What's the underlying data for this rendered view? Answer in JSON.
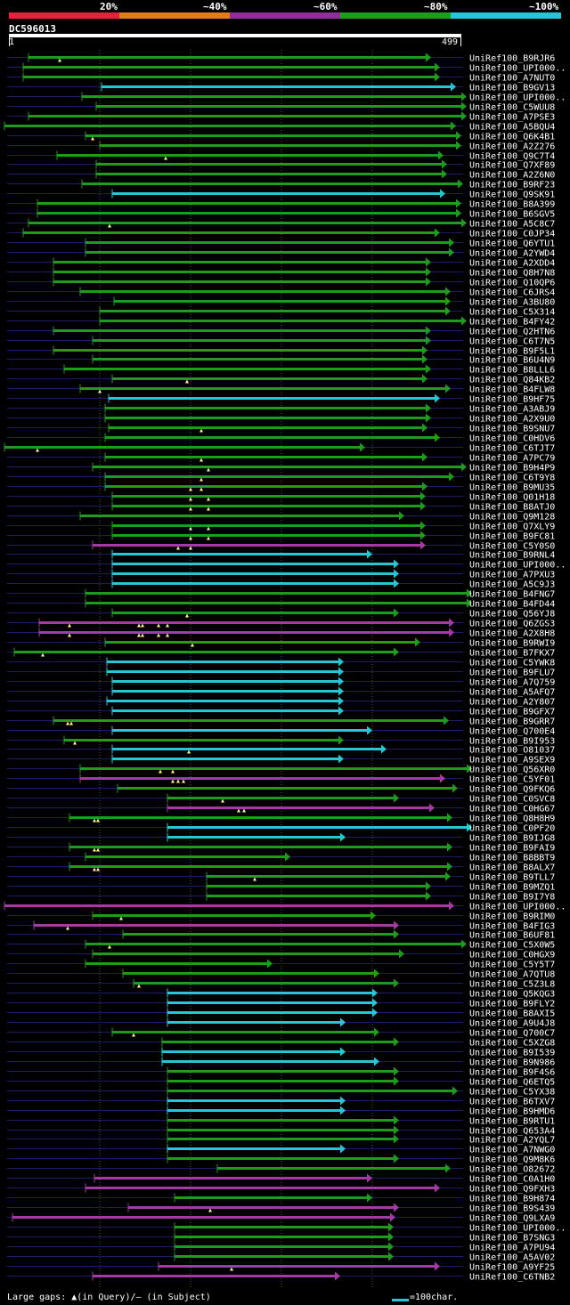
{
  "legend": {
    "labels": [
      "20%",
      "~40%",
      "~60%",
      "~80%",
      "~100%"
    ],
    "colors": [
      "#e8203c",
      "#e37b1e",
      "#8f2f99",
      "#1e9c1e",
      "#25c6d6"
    ]
  },
  "query": {
    "name": "DC596013",
    "start": "1",
    "end": "499",
    "length": 499
  },
  "footer": {
    "gaps_text": "Large gaps: ▲(in Query)/– (in Subject)",
    "scale_text": "=100char."
  },
  "color_map": {
    "g": "#1e9c1e",
    "c": "#25c6d6",
    "p": "#a43aa4"
  },
  "hits": [
    [
      "UniRef100_B9RJR6",
      "g",
      32,
      484,
      [
        67
      ]
    ],
    [
      "UniRef100_UPI000..",
      "g",
      26,
      494,
      []
    ],
    [
      "UniRef100_A7NUT0",
      "g",
      26,
      494,
      []
    ],
    [
      "UniRef100_B9GV13",
      "c",
      114,
      512,
      []
    ],
    [
      "UniRef100_UPI000..",
      "g",
      92,
      524,
      []
    ],
    [
      "UniRef100_C5WUU8",
      "g",
      108,
      524,
      []
    ],
    [
      "UniRef100_A7PSE3",
      "g",
      32,
      524,
      []
    ],
    [
      "UniRef100_A5BQU4",
      "g",
      5,
      512,
      []
    ],
    [
      "UniRef100_Q6K4B1",
      "g",
      96,
      518,
      [
        104
      ]
    ],
    [
      "UniRef100_A2Z276",
      "g",
      112,
      518,
      []
    ],
    [
      "UniRef100_Q9C7T4",
      "g",
      64,
      498,
      [
        186
      ]
    ],
    [
      "UniRef100_Q7XF89",
      "g",
      108,
      502,
      []
    ],
    [
      "UniRef100_A2Z6N0",
      "g",
      108,
      502,
      []
    ],
    [
      "UniRef100_B9RF23",
      "g",
      92,
      520,
      []
    ],
    [
      "UniRef100_Q9SK91",
      "c",
      126,
      500,
      []
    ],
    [
      "UniRef100_B8A399",
      "g",
      42,
      518,
      []
    ],
    [
      "UniRef100_B6SGV5",
      "g",
      42,
      518,
      []
    ],
    [
      "UniRef100_A5C8C7",
      "g",
      32,
      524,
      [
        123
      ]
    ],
    [
      "UniRef100_C0JP34",
      "g",
      26,
      494,
      []
    ],
    [
      "UniRef100_Q6YTU1",
      "g",
      96,
      510,
      []
    ],
    [
      "UniRef100_A2YWD4",
      "g",
      96,
      510,
      []
    ],
    [
      "UniRef100_A2XDD4",
      "g",
      60,
      484,
      []
    ],
    [
      "UniRef100_Q8H7N8",
      "g",
      60,
      484,
      []
    ],
    [
      "UniRef100_Q10QP6",
      "g",
      60,
      484,
      []
    ],
    [
      "UniRef100_C6JRS4",
      "g",
      90,
      506,
      []
    ],
    [
      "UniRef100_A3BU80",
      "g",
      128,
      506,
      []
    ],
    [
      "UniRef100_C5X314",
      "g",
      112,
      506,
      []
    ],
    [
      "UniRef100_B4FY42",
      "g",
      112,
      524,
      []
    ],
    [
      "UniRef100_Q2HTN6",
      "g",
      60,
      484,
      []
    ],
    [
      "UniRef100_C6T7N5",
      "g",
      104,
      484,
      []
    ],
    [
      "UniRef100_B9F5L1",
      "g",
      60,
      480,
      []
    ],
    [
      "UniRef100_B6U4N9",
      "g",
      104,
      480,
      []
    ],
    [
      "UniRef100_B8LLL6",
      "g",
      72,
      484,
      []
    ],
    [
      "UniRef100_Q84KB2",
      "g",
      126,
      480,
      [
        210
      ]
    ],
    [
      "UniRef100_B4FLW8",
      "g",
      90,
      506,
      [
        112
      ]
    ],
    [
      "UniRef100_B9HF75",
      "c",
      122,
      494,
      []
    ],
    [
      "UniRef100_A3ABJ9",
      "g",
      118,
      484,
      []
    ],
    [
      "UniRef100_A2X9U0",
      "g",
      118,
      484,
      []
    ],
    [
      "UniRef100_B9SNU7",
      "g",
      122,
      480,
      [
        226
      ]
    ],
    [
      "UniRef100_C0HDV6",
      "g",
      118,
      494,
      []
    ],
    [
      "UniRef100_C6TJT7",
      "g",
      5,
      410,
      [
        42
      ]
    ],
    [
      "UniRef100_A7PC79",
      "g",
      118,
      480,
      [
        226
      ]
    ],
    [
      "UniRef100_B9H4P9",
      "g",
      104,
      524,
      [
        234
      ]
    ],
    [
      "UniRef100_C6T9Y8",
      "g",
      118,
      510,
      [
        226
      ]
    ],
    [
      "UniRef100_B9MU35",
      "g",
      118,
      480,
      [
        214,
        226
      ]
    ],
    [
      "UniRef100_Q01H18",
      "g",
      126,
      478,
      [
        214,
        234
      ]
    ],
    [
      "UniRef100_B8ATJ0",
      "g",
      126,
      478,
      [
        214,
        234
      ]
    ],
    [
      "UniRef100_Q9M128",
      "g",
      90,
      454,
      []
    ],
    [
      "UniRef100_Q7XLY9",
      "g",
      126,
      478,
      [
        214,
        234
      ]
    ],
    [
      "UniRef100_B9FC81",
      "g",
      126,
      478,
      [
        214,
        234
      ]
    ],
    [
      "UniRef100_C5Y0S0",
      "p",
      104,
      478,
      [
        200,
        214
      ]
    ],
    [
      "UniRef100_B9RNL4",
      "c",
      126,
      418,
      []
    ],
    [
      "UniRef100_UPI000..",
      "c",
      126,
      448,
      []
    ],
    [
      "UniRef100_A7PXU3",
      "c",
      126,
      448,
      []
    ],
    [
      "UniRef100_A5C9J3",
      "c",
      126,
      448,
      []
    ],
    [
      "UniRef100_B4FNG7",
      "g",
      96,
      530,
      []
    ],
    [
      "UniRef100_B4FD44",
      "g",
      96,
      530,
      []
    ],
    [
      "UniRef100_Q56YJ8",
      "g",
      126,
      448,
      [
        210
      ]
    ],
    [
      "UniRef100_Q6ZGS3",
      "p",
      44,
      510,
      [
        78,
        156,
        160,
        178,
        188
      ]
    ],
    [
      "UniRef100_A2X8H8",
      "p",
      44,
      510,
      [
        78,
        156,
        160,
        178,
        188
      ]
    ],
    [
      "UniRef100_B9RWI9",
      "g",
      118,
      472,
      [
        216
      ]
    ],
    [
      "UniRef100_B7FKX7",
      "g",
      16,
      448,
      [
        48
      ]
    ],
    [
      "UniRef100_C5YWK8",
      "c",
      120,
      386,
      []
    ],
    [
      "UniRef100_B9FLU7",
      "c",
      120,
      386,
      []
    ],
    [
      "UniRef100_A7Q759",
      "c",
      126,
      386,
      []
    ],
    [
      "UniRef100_A5AFQ7",
      "c",
      126,
      386,
      []
    ],
    [
      "UniRef100_A2Y807",
      "c",
      120,
      386,
      []
    ],
    [
      "UniRef100_B9GFX7",
      "c",
      126,
      386,
      []
    ],
    [
      "UniRef100_B9GRR7",
      "g",
      60,
      504,
      [
        76,
        80
      ]
    ],
    [
      "UniRef100_Q700E4",
      "c",
      126,
      418,
      []
    ],
    [
      "UniRef100_B9I953",
      "g",
      72,
      386,
      [
        84
      ]
    ],
    [
      "UniRef100_O81037",
      "c",
      126,
      434,
      [
        212
      ]
    ],
    [
      "UniRef100_A9SEX9",
      "c",
      126,
      386,
      []
    ],
    [
      "UniRef100_Q56XR0",
      "g",
      90,
      530,
      [
        180,
        194
      ]
    ],
    [
      "UniRef100_C5YF01",
      "p",
      90,
      500,
      [
        194,
        200,
        206
      ]
    ],
    [
      "UniRef100_Q9FKQ6",
      "g",
      132,
      514,
      []
    ],
    [
      "UniRef100_C0SVC8",
      "g",
      188,
      448,
      [
        250
      ]
    ],
    [
      "UniRef100_C0HG67",
      "p",
      188,
      488,
      [
        268,
        274
      ]
    ],
    [
      "UniRef100_Q8H8H9",
      "g",
      78,
      508,
      [
        106,
        110
      ]
    ],
    [
      "UniRef100_C0PF20",
      "c",
      188,
      530,
      []
    ],
    [
      "UniRef100_B9IJG8",
      "c",
      188,
      388,
      []
    ],
    [
      "UniRef100_B9FAI9",
      "g",
      78,
      508,
      [
        106,
        110
      ]
    ],
    [
      "UniRef100_B8BBT9",
      "g",
      96,
      326,
      []
    ],
    [
      "UniRef100_B8ALX7",
      "g",
      78,
      508,
      [
        106,
        110
      ]
    ],
    [
      "UniRef100_B9TLL7",
      "g",
      232,
      506,
      [
        286
      ]
    ],
    [
      "UniRef100_B9MZQ1",
      "g",
      232,
      484,
      []
    ],
    [
      "UniRef100_B9I7Y8",
      "g",
      232,
      484,
      []
    ],
    [
      "UniRef100_UPI000..",
      "p",
      5,
      510,
      []
    ],
    [
      "UniRef100_B9RIM0",
      "g",
      104,
      422,
      [
        136
      ]
    ],
    [
      "UniRef100_B4FIG3",
      "p",
      38,
      448,
      [
        76
      ]
    ],
    [
      "UniRef100_B6UF81",
      "g",
      138,
      448,
      []
    ],
    [
      "UniRef100_C5X0W5",
      "g",
      96,
      524,
      [
        123
      ]
    ],
    [
      "UniRef100_C0HGX9",
      "g",
      104,
      454,
      []
    ],
    [
      "UniRef100_C5Y5T7",
      "g",
      96,
      306,
      []
    ],
    [
      "UniRef100_A7QTU8",
      "g",
      138,
      426,
      []
    ],
    [
      "UniRef100_C5Z3L8",
      "g",
      150,
      448,
      [
        156
      ]
    ],
    [
      "UniRef100_Q5KQG3",
      "c",
      188,
      424,
      []
    ],
    [
      "UniRef100_B9FLY2",
      "c",
      188,
      424,
      []
    ],
    [
      "UniRef100_B8AXI5",
      "c",
      188,
      424,
      []
    ],
    [
      "UniRef100_A9U4J8",
      "c",
      188,
      388,
      []
    ],
    [
      "UniRef100_Q700C7",
      "g",
      126,
      426,
      [
        150
      ]
    ],
    [
      "UniRef100_C5XZG8",
      "g",
      182,
      448,
      []
    ],
    [
      "UniRef100_B9I539",
      "c",
      182,
      388,
      []
    ],
    [
      "UniRef100_B9N986",
      "c",
      182,
      426,
      []
    ],
    [
      "UniRef100_B9F4S6",
      "g",
      188,
      448,
      []
    ],
    [
      "UniRef100_Q6ETQ5",
      "g",
      188,
      448,
      []
    ],
    [
      "UniRef100_C5YX38",
      "g",
      188,
      514,
      []
    ],
    [
      "UniRef100_B6TXV7",
      "c",
      188,
      388,
      []
    ],
    [
      "UniRef100_B9HMD6",
      "c",
      188,
      388,
      []
    ],
    [
      "UniRef100_B9RTU1",
      "g",
      188,
      448,
      []
    ],
    [
      "UniRef100_Q653A4",
      "g",
      188,
      448,
      []
    ],
    [
      "UniRef100_A2YQL7",
      "g",
      188,
      448,
      []
    ],
    [
      "UniRef100_A7NWG0",
      "c",
      188,
      388,
      []
    ],
    [
      "UniRef100_Q9M8K6",
      "g",
      188,
      448,
      []
    ],
    [
      "UniRef100_O82672",
      "g",
      244,
      506,
      []
    ],
    [
      "UniRef100_C0A1H0",
      "p",
      106,
      418,
      []
    ],
    [
      "UniRef100_Q9FXH3",
      "p",
      96,
      494,
      []
    ],
    [
      "UniRef100_B9H874",
      "g",
      196,
      418,
      []
    ],
    [
      "UniRef100_B9S439",
      "p",
      144,
      448,
      [
        236
      ]
    ],
    [
      "UniRef100_Q9LXA9",
      "p",
      14,
      444,
      []
    ],
    [
      "UniRef100_UPI000..",
      "g",
      196,
      442,
      []
    ],
    [
      "UniRef100_B7SNG3",
      "g",
      196,
      442,
      []
    ],
    [
      "UniRef100_A7PU94",
      "g",
      196,
      442,
      []
    ],
    [
      "UniRef100_A5AV02",
      "g",
      196,
      442,
      []
    ],
    [
      "UniRef100_A9YF25",
      "p",
      178,
      494,
      [
        260
      ]
    ],
    [
      "UniRef100_C6TNB2",
      "p",
      104,
      382,
      []
    ]
  ]
}
